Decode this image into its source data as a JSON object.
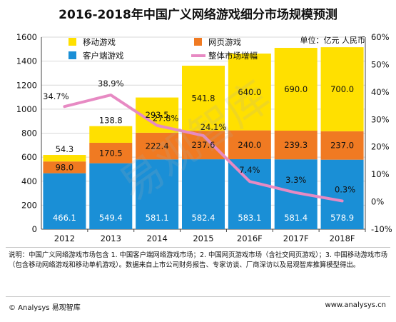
{
  "title": "2016-2018年中国广义网络游戏细分市场规模预测",
  "unit": "单位：亿元 人民币",
  "watermark": "易观智库",
  "notes": "说明：中国广义网络游戏市场包含 1. 中国客户端网络游戏市场；2. 中国网页游戏市场（含社交网页游戏）；3. 中国移动游戏市场（包含移动网络游戏和移动单机游戏）。数据来自上市公司财务报告、专家访谈、厂商深访以及易观智库推算模型得出。",
  "footer_left": "© Analysys 易观智库",
  "footer_right": "www.analysys.cn",
  "chart_data": {
    "type": "bar",
    "stacked": true,
    "title": "2016-2018年中国广义网络游戏细分市场规模预测",
    "categories": [
      "2012",
      "2013",
      "2014",
      "2015",
      "2016F",
      "2017F",
      "2018F"
    ],
    "ylim": [
      0,
      1600
    ],
    "yticks": [
      0,
      200,
      400,
      600,
      800,
      1000,
      1200,
      1400,
      1600
    ],
    "y2lim": [
      -10,
      60
    ],
    "y2ticks": [
      "-10%",
      "0%",
      "10%",
      "20%",
      "30%",
      "40%",
      "50%",
      "60%"
    ],
    "legend_position": "top",
    "series": [
      {
        "name": "客户端游戏",
        "color": "#1a8fd6",
        "values": [
          466.1,
          549.4,
          581.1,
          582.4,
          583.1,
          581.4,
          578.9
        ]
      },
      {
        "name": "网页游戏",
        "color": "#f07a22",
        "values": [
          98.0,
          170.5,
          222.4,
          237.6,
          240.0,
          239.3,
          237.0
        ]
      },
      {
        "name": "移动游戏",
        "color": "#ffe000",
        "values": [
          54.3,
          138.8,
          293.5,
          541.8,
          640.0,
          690.0,
          700.0
        ]
      }
    ],
    "line": {
      "name": "整体市场增幅",
      "color": "#e78ac3",
      "values": [
        34.7,
        38.9,
        27.8,
        24.1,
        7.4,
        3.3,
        0.3
      ],
      "labels": [
        "34.7%",
        "38.9%",
        "27.8%",
        "24.1%",
        "7.4%",
        "3.3%",
        "0.3%"
      ]
    }
  }
}
